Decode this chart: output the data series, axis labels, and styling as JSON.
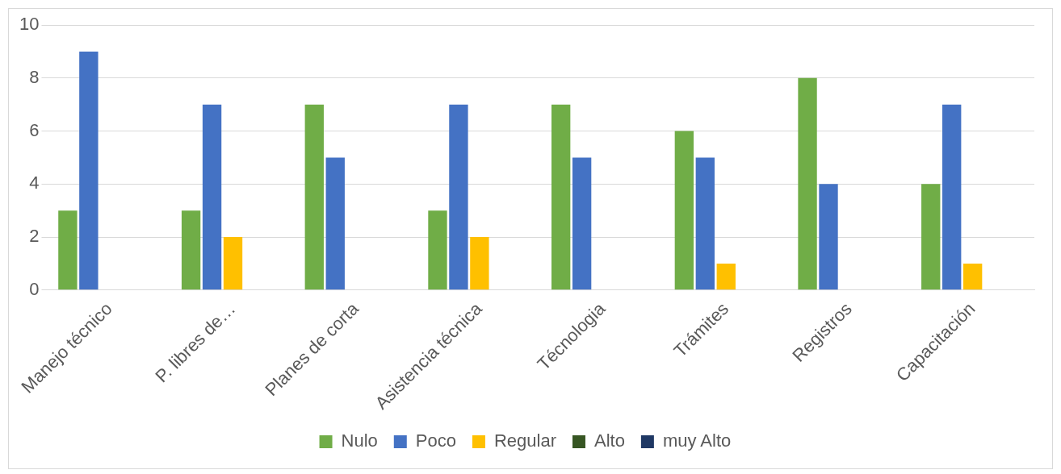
{
  "chart_data": {
    "type": "bar",
    "categories": [
      "Manejo técnico",
      "P. libres de…",
      "Planes de corta",
      "Asistencia técnica",
      "Técnologia",
      "Trámites",
      "Registros",
      "Capacitación"
    ],
    "series": [
      {
        "name": "Nulo",
        "color": "#70ad47",
        "values": [
          3,
          3,
          7,
          3,
          7,
          6,
          8,
          4
        ]
      },
      {
        "name": "Poco",
        "color": "#4472c4",
        "values": [
          9,
          7,
          5,
          7,
          5,
          5,
          4,
          7
        ]
      },
      {
        "name": "Regular",
        "color": "#ffc000",
        "values": [
          0,
          2,
          0,
          2,
          0,
          1,
          0,
          1
        ]
      },
      {
        "name": "Alto",
        "color": "#375623",
        "values": [
          0,
          0,
          0,
          0,
          0,
          0,
          0,
          0
        ]
      },
      {
        "name": "muy Alto",
        "color": "#1f3864",
        "values": [
          0,
          0,
          0,
          0,
          0,
          0,
          0,
          0
        ]
      }
    ],
    "ylim": [
      0,
      10
    ],
    "yticks": [
      0,
      2,
      4,
      6,
      8,
      10
    ],
    "grid": "y",
    "legend": "bottom"
  }
}
